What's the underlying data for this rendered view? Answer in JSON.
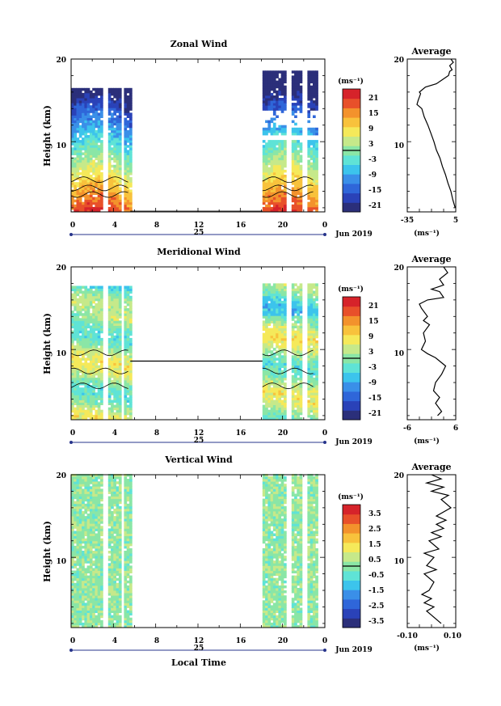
{
  "shared": {
    "xlabel": "Local Time",
    "date_label": "Jun 2019",
    "x_ticks": [
      "0",
      "4",
      "8",
      "12",
      "16",
      "20",
      "0"
    ],
    "day_label": "25",
    "ylabel": "Height (km)",
    "y_ticks": [
      "20",
      "10"
    ],
    "colorbar_unit": "(ms⁻¹)",
    "avg_title": "Average",
    "avg_unit": "(ms⁻¹)"
  },
  "chart_data": [
    {
      "type": "heatmap",
      "title": "Zonal Wind",
      "xlabel": "Local Time",
      "ylabel": "Height (km)",
      "xlim": [
        0,
        24
      ],
      "ylim": [
        1.5,
        20
      ],
      "data_segments": [
        [
          0,
          5.6
        ],
        [
          18.1,
          23.2
        ]
      ],
      "colorbar": {
        "ticks": [
          "21",
          "15",
          "9",
          "3",
          "-3",
          "-9",
          "-15",
          "-21"
        ],
        "range": [
          -24,
          24
        ]
      },
      "profile": {
        "title": "Average",
        "xlim": [
          -35,
          5
        ],
        "x_ticks": [
          "-35",
          "5"
        ],
        "y_ticks": [
          "20",
          "10"
        ],
        "points": [
          [
            4.5,
            2.0
          ],
          [
            2.5,
            3
          ],
          [
            1,
            4
          ],
          [
            -1.5,
            5
          ],
          [
            -3.5,
            6
          ],
          [
            -6,
            7
          ],
          [
            -8,
            8
          ],
          [
            -11,
            9
          ],
          [
            -13,
            10
          ],
          [
            -15.5,
            11
          ],
          [
            -18,
            12
          ],
          [
            -21,
            13
          ],
          [
            -23,
            14
          ],
          [
            -27,
            14.5
          ],
          [
            -26,
            15
          ],
          [
            -24,
            15.8
          ],
          [
            -25,
            16
          ],
          [
            -20,
            16.6
          ],
          [
            -11,
            17
          ],
          [
            -6,
            17.5
          ],
          [
            -1,
            18
          ],
          [
            0,
            18.5
          ],
          [
            2,
            18.7
          ],
          [
            0,
            19.2
          ],
          [
            3,
            19.6
          ],
          [
            1,
            20
          ]
        ]
      }
    },
    {
      "type": "heatmap",
      "title": "Meridional Wind",
      "xlabel": "Local Time",
      "ylabel": "Height (km)",
      "xlim": [
        0,
        24
      ],
      "ylim": [
        1.5,
        20
      ],
      "data_segments": [
        [
          0,
          5.6
        ],
        [
          18.1,
          23.2
        ]
      ],
      "colorbar": {
        "ticks": [
          "21",
          "15",
          "9",
          "3",
          "-3",
          "-9",
          "-15",
          "-21"
        ],
        "range": [
          -24,
          24
        ]
      },
      "profile": {
        "title": "Average",
        "xlim": [
          -6,
          6
        ],
        "x_ticks": [
          "-6",
          "6"
        ],
        "y_ticks": [
          "20",
          "10"
        ],
        "points": [
          [
            1.5,
            2.0
          ],
          [
            2.5,
            2.5
          ],
          [
            1,
            3.5
          ],
          [
            2,
            4.2
          ],
          [
            0.5,
            5
          ],
          [
            1,
            6
          ],
          [
            2.5,
            7
          ],
          [
            3.5,
            8
          ],
          [
            1,
            9
          ],
          [
            -1,
            9.5
          ],
          [
            -2.5,
            10
          ],
          [
            -1.5,
            11
          ],
          [
            -2,
            12
          ],
          [
            -0.5,
            13
          ],
          [
            -2,
            13.5
          ],
          [
            -1,
            14
          ],
          [
            -2.5,
            15
          ],
          [
            -3,
            15.5
          ],
          [
            -1,
            16
          ],
          [
            3,
            16.3
          ],
          [
            2,
            17
          ],
          [
            0,
            17.3
          ],
          [
            3,
            17.8
          ],
          [
            2,
            18.5
          ],
          [
            4,
            19.3
          ],
          [
            3,
            20
          ]
        ]
      }
    },
    {
      "type": "heatmap",
      "title": "Vertical Wind",
      "xlabel": "Local Time",
      "ylabel": "Height (km)",
      "xlim": [
        0,
        24
      ],
      "ylim": [
        1.5,
        20
      ],
      "data_segments": [
        [
          0,
          5.6
        ],
        [
          18.1,
          23.2
        ]
      ],
      "colorbar": {
        "ticks": [
          "3.5",
          "2.5",
          "1.5",
          "0.5",
          "-0.5",
          "-1.5",
          "-2.5",
          "-3.5"
        ],
        "range": [
          -4,
          4
        ]
      },
      "profile": {
        "title": "Average",
        "xlim": [
          -0.1,
          0.1
        ],
        "x_ticks": [
          "-0.10",
          "0.10"
        ],
        "y_ticks": [
          "20",
          "10"
        ],
        "points": [
          [
            0.04,
            2.0
          ],
          [
            0.02,
            2.5
          ],
          [
            0.0,
            3
          ],
          [
            -0.02,
            3.5
          ],
          [
            0.01,
            4
          ],
          [
            -0.03,
            4.5
          ],
          [
            0.0,
            5
          ],
          [
            -0.04,
            5.5
          ],
          [
            -0.01,
            6
          ],
          [
            0.01,
            7
          ],
          [
            -0.03,
            8
          ],
          [
            0.02,
            8.5
          ],
          [
            -0.02,
            9
          ],
          [
            0.01,
            10
          ],
          [
            -0.03,
            10.5
          ],
          [
            0.03,
            11
          ],
          [
            -0.01,
            12
          ],
          [
            0.04,
            12.5
          ],
          [
            0.0,
            13
          ],
          [
            0.05,
            13.5
          ],
          [
            0.02,
            14
          ],
          [
            0.06,
            14.5
          ],
          [
            0.02,
            15
          ],
          [
            0.08,
            16
          ],
          [
            0.04,
            17
          ],
          [
            0.07,
            17.5
          ],
          [
            0.0,
            18
          ],
          [
            0.05,
            18.5
          ],
          [
            -0.02,
            19
          ],
          [
            0.04,
            19.5
          ],
          [
            0.0,
            20
          ]
        ]
      }
    }
  ]
}
